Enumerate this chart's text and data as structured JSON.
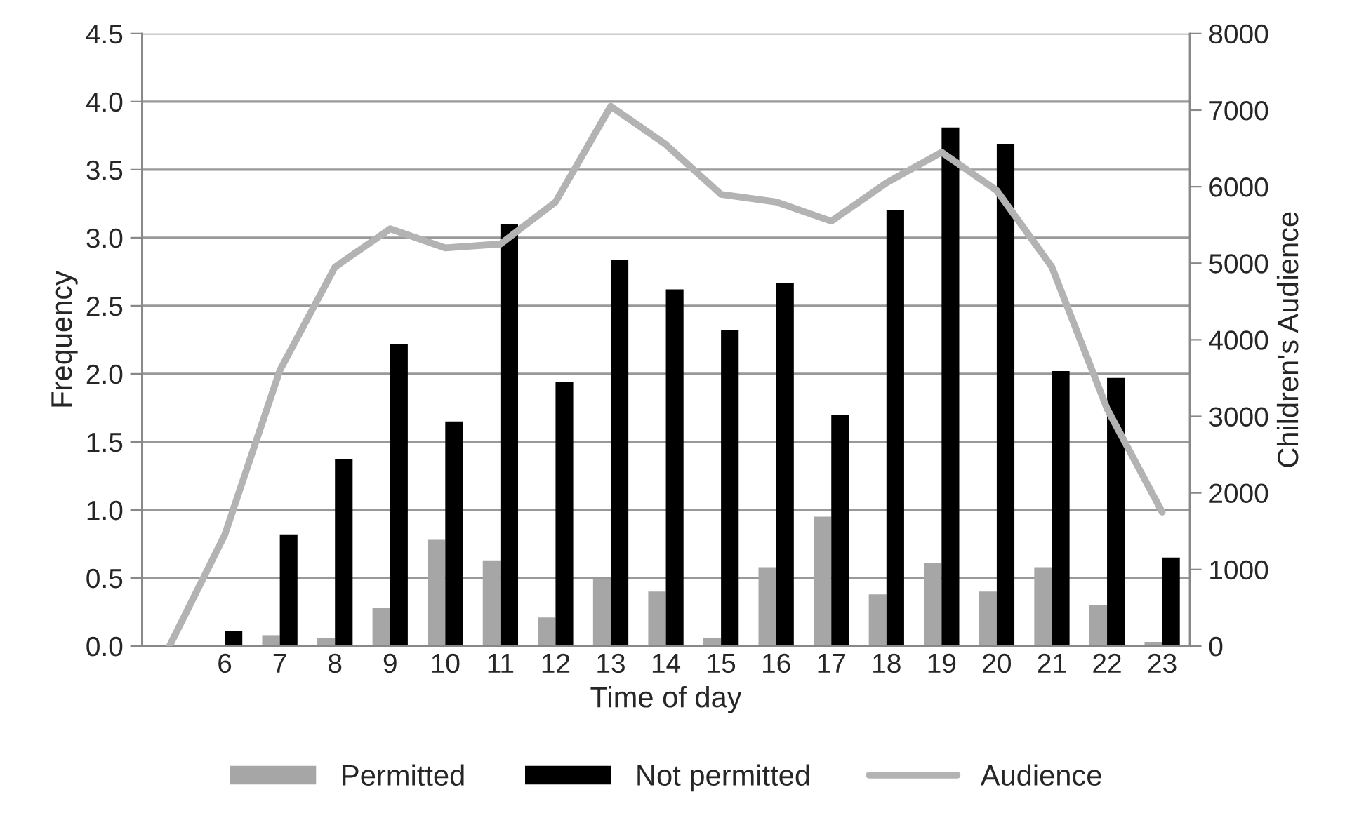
{
  "chart_data": {
    "type": "bar",
    "xlabel": "Time of day",
    "ylabel": "Frequency",
    "y2label": "Children's Audience",
    "categories": [
      null,
      "6",
      "7",
      "8",
      "9",
      "10",
      "11",
      "12",
      "13",
      "14",
      "15",
      "16",
      "17",
      "18",
      "19",
      "20",
      "21",
      "22",
      "23"
    ],
    "series": [
      {
        "name": "Permitted",
        "color": "#a6a6a6",
        "values": [
          null,
          0,
          0.08,
          0.06,
          0.28,
          0.78,
          0.63,
          0.21,
          0.49,
          0.4,
          0.06,
          0.58,
          0.95,
          0.38,
          0.61,
          0.4,
          0.58,
          0.3,
          0.03
        ]
      },
      {
        "name": "Not permitted",
        "color": "#000000",
        "values": [
          null,
          0.11,
          0.82,
          1.37,
          2.22,
          1.65,
          3.1,
          1.94,
          2.84,
          2.62,
          2.32,
          2.67,
          1.7,
          3.2,
          3.81,
          3.69,
          2.02,
          1.97,
          0.65
        ]
      },
      {
        "name": "Audience",
        "type": "line",
        "axis": "y2",
        "color": "#b3b3b3",
        "values": [
          0,
          1450,
          3600,
          4950,
          5450,
          5200,
          5250,
          5800,
          7050,
          6550,
          5900,
          5800,
          5550,
          6050,
          6450,
          5950,
          4950,
          3100,
          1750
        ]
      }
    ],
    "ylim": [
      0,
      4.5
    ],
    "yticks": [
      {
        "value": 0,
        "label": "0.0"
      },
      {
        "value": 0.5,
        "label": "0.5"
      },
      {
        "value": 1,
        "label": "1.0"
      },
      {
        "value": 1.5,
        "label": "1.5"
      },
      {
        "value": 2,
        "label": "2.0"
      },
      {
        "value": 2.5,
        "label": "2.5"
      },
      {
        "value": 3,
        "label": "3.0"
      },
      {
        "value": 3.5,
        "label": "3.5"
      },
      {
        "value": 4,
        "label": "4.0"
      },
      {
        "value": 4.5,
        "label": "4.5"
      }
    ],
    "y2lim": [
      0,
      8000
    ],
    "y2ticks": [
      0,
      1000,
      2000,
      3000,
      4000,
      5000,
      6000,
      7000,
      8000
    ],
    "grid": "y",
    "legend": "bottom",
    "marker": "none",
    "line_style": "solid"
  }
}
